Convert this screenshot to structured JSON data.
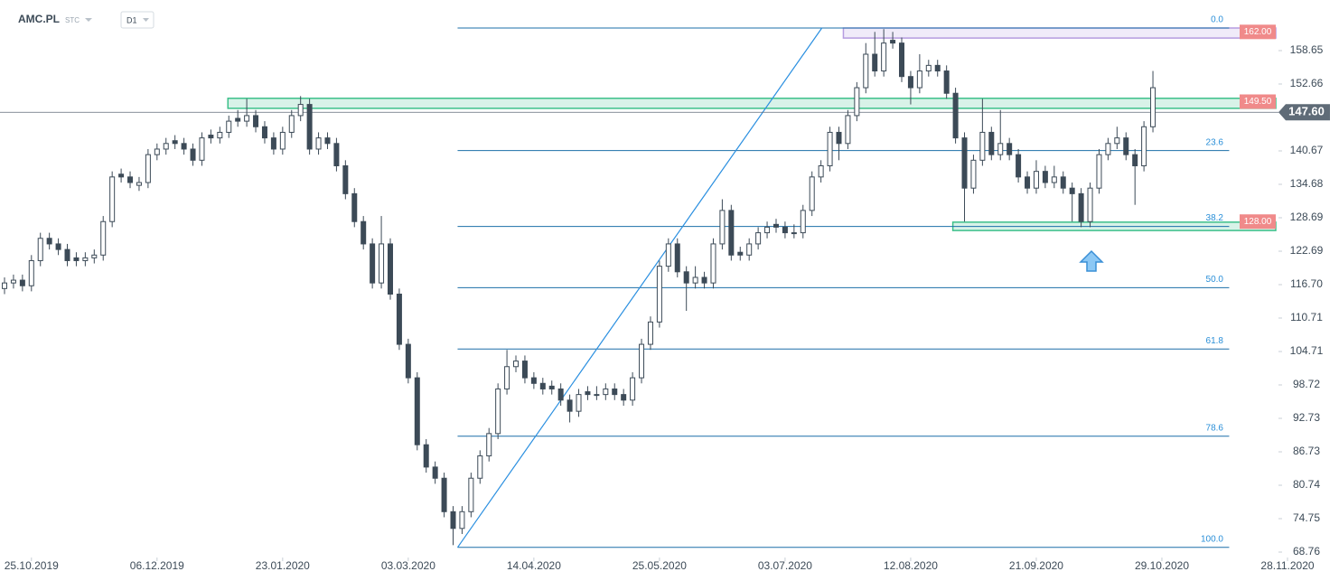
{
  "header": {
    "symbol": "AMC.PL",
    "tag": "STC",
    "interval": "D1"
  },
  "chart_data": {
    "type": "candlestick",
    "color_up": "#ffffff",
    "color_down": "#3c4a57",
    "outline": "#3c4a57",
    "xlim": [
      0,
      143
    ],
    "ylim": [
      68.11,
      167.72
    ],
    "xticks": [
      {
        "value": 3,
        "label": "25.10.2019"
      },
      {
        "value": 17,
        "label": "06.12.2019"
      },
      {
        "value": 31,
        "label": "23.01.2020"
      },
      {
        "value": 45,
        "label": "03.03.2020"
      },
      {
        "value": 59,
        "label": "14.04.2020"
      },
      {
        "value": 73,
        "label": "25.05.2020"
      },
      {
        "value": 87,
        "label": "03.07.2020"
      },
      {
        "value": 101,
        "label": "12.08.2020"
      },
      {
        "value": 115,
        "label": "21.09.2020"
      },
      {
        "value": 129,
        "label": "29.10.2020"
      },
      {
        "value": 143,
        "label": "28.11.2020"
      }
    ],
    "yticks": [
      68.76,
      74.75,
      80.74,
      86.73,
      92.73,
      98.72,
      104.71,
      110.71,
      {
        "value": 116.7,
        "label": "116.70"
      },
      122.69,
      128.69,
      134.68,
      140.67,
      152.66,
      158.65
    ],
    "last_price": {
      "value": 147.6,
      "label": "147.60"
    },
    "zones": [
      {
        "level": {
          "value": 162,
          "label": "162.00"
        },
        "range": [
          160.9,
          162.7
        ],
        "start": 93.5,
        "color": "#b59ce0"
      },
      {
        "level": {
          "value": 149.5,
          "label": "149.50"
        },
        "range": [
          148.3,
          150.1
        ],
        "start": 24.9,
        "color": "#3cc08a"
      },
      {
        "level": {
          "value": 128,
          "label": "128.00"
        },
        "range": [
          126.4,
          127.9
        ],
        "start": 105.7,
        "color": "#3cc08a"
      }
    ],
    "fibonacci": {
      "high": 162.7,
      "low": 69.6,
      "start": 50.5,
      "end": 136.5,
      "levels": [
        {
          "value": 0,
          "label": "0.0"
        },
        {
          "value": 23.6,
          "label": "23.6"
        },
        {
          "value": 38.2,
          "label": "38.2"
        },
        {
          "value": 50,
          "label": "50.0"
        },
        {
          "value": 61.8,
          "label": "61.8"
        },
        {
          "value": 78.6,
          "label": "78.6"
        },
        {
          "value": 100,
          "label": "100.0"
        }
      ]
    },
    "trendline": {
      "x": [
        50.5,
        91.1
      ],
      "y": [
        69.6,
        162.7
      ]
    },
    "candles": [
      [
        116,
        118,
        115,
        117
      ],
      [
        117,
        118.5,
        116,
        117.5
      ],
      [
        117.5,
        118.5,
        115.5,
        116.5
      ],
      [
        116.5,
        122,
        115.5,
        121
      ],
      [
        121,
        126,
        120,
        125
      ],
      [
        125,
        126,
        123,
        124
      ],
      [
        124,
        125,
        122,
        123
      ],
      [
        123,
        124,
        120,
        121
      ],
      [
        121.5,
        122.5,
        120,
        121
      ],
      [
        121,
        122.5,
        120,
        121.5
      ],
      [
        121.5,
        123,
        120.5,
        122
      ],
      [
        122,
        129,
        121,
        128
      ],
      [
        128,
        137,
        127,
        136
      ],
      [
        136.5,
        137.5,
        135,
        136
      ],
      [
        136,
        137,
        134,
        135
      ],
      [
        134.5,
        136,
        133.5,
        135
      ],
      [
        135,
        141,
        134,
        140
      ],
      [
        140,
        142,
        139,
        141
      ],
      [
        141,
        143,
        140,
        142
      ],
      [
        142.5,
        143.5,
        141,
        142
      ],
      [
        142,
        143,
        140,
        141
      ],
      [
        141,
        142,
        138,
        139
      ],
      [
        139,
        144,
        138,
        143
      ],
      [
        143.5,
        144.5,
        142,
        143
      ],
      [
        143,
        145,
        142,
        144
      ],
      [
        144,
        147,
        143,
        146
      ],
      [
        146.5,
        148,
        145,
        146
      ],
      [
        146,
        150,
        145,
        147
      ],
      [
        147,
        148,
        144,
        145
      ],
      [
        145,
        146,
        142,
        143
      ],
      [
        143,
        144,
        140,
        141
      ],
      [
        141,
        145,
        140,
        144
      ],
      [
        144,
        148,
        143,
        147
      ],
      [
        147,
        150.5,
        146,
        149
      ],
      [
        149,
        150,
        140,
        141
      ],
      [
        141,
        144,
        140,
        143
      ],
      [
        143,
        144,
        141,
        142
      ],
      [
        142,
        143,
        137,
        138
      ],
      [
        138,
        139,
        132,
        133
      ],
      [
        133,
        134,
        127,
        128
      ],
      [
        128,
        129,
        123,
        124
      ],
      [
        124,
        125,
        116,
        117
      ],
      [
        117,
        129,
        116,
        124
      ],
      [
        124,
        125,
        114,
        115
      ],
      [
        115,
        116,
        105,
        106
      ],
      [
        106,
        107,
        99,
        100
      ],
      [
        100,
        101,
        87,
        88
      ],
      [
        88,
        89,
        83,
        84
      ],
      [
        84,
        85,
        81,
        82
      ],
      [
        82,
        83,
        75,
        76
      ],
      [
        76,
        77,
        70,
        73
      ],
      [
        73,
        77,
        72,
        76
      ],
      [
        76,
        83,
        75,
        82
      ],
      [
        82,
        87,
        81,
        86
      ],
      [
        86,
        91,
        85,
        90
      ],
      [
        90,
        99,
        89,
        98
      ],
      [
        98,
        105,
        97,
        102
      ],
      [
        102,
        104,
        101,
        103
      ],
      [
        103,
        104,
        99,
        100
      ],
      [
        100,
        101,
        98,
        99
      ],
      [
        99,
        100,
        97,
        98
      ],
      [
        98.5,
        99.5,
        97,
        98
      ],
      [
        98,
        99,
        95,
        96
      ],
      [
        96,
        97,
        92,
        94
      ],
      [
        94,
        98,
        93,
        97
      ],
      [
        97.5,
        98.5,
        96,
        97
      ],
      [
        97,
        98.5,
        96,
        97
      ],
      [
        97,
        99,
        96,
        98
      ],
      [
        98,
        99,
        96,
        97
      ],
      [
        97,
        98,
        95,
        96
      ],
      [
        96,
        101,
        95,
        100
      ],
      [
        100,
        107,
        99,
        106
      ],
      [
        106,
        111,
        105,
        110
      ],
      [
        110,
        121,
        109,
        120
      ],
      [
        120,
        125,
        119,
        124
      ],
      [
        124,
        125,
        118,
        119
      ],
      [
        119,
        120,
        112,
        117
      ],
      [
        117,
        120,
        116,
        118
      ],
      [
        118,
        119,
        116,
        117
      ],
      [
        117,
        125,
        116,
        124
      ],
      [
        124,
        132,
        123,
        130
      ],
      [
        130,
        131,
        121,
        122
      ],
      [
        122.5,
        123.5,
        121,
        122
      ],
      [
        122,
        125,
        121,
        124
      ],
      [
        124,
        127,
        123,
        126
      ],
      [
        126,
        128,
        125,
        127
      ],
      [
        127.5,
        128.5,
        126,
        127
      ],
      [
        127,
        128,
        125,
        126
      ],
      [
        126,
        127.5,
        125,
        126
      ],
      [
        126,
        131,
        125,
        130
      ],
      [
        130,
        137,
        129,
        136
      ],
      [
        136,
        139,
        135,
        138
      ],
      [
        138,
        145,
        137,
        144
      ],
      [
        144,
        145,
        139,
        142
      ],
      [
        142,
        148,
        141,
        147
      ],
      [
        147,
        153,
        146,
        152
      ],
      [
        152,
        160,
        151,
        158
      ],
      [
        158,
        162,
        154,
        155
      ],
      [
        155,
        162.5,
        154,
        160
      ],
      [
        160.5,
        162,
        159,
        160
      ],
      [
        160,
        161,
        153,
        154
      ],
      [
        154,
        155,
        149,
        152
      ],
      [
        152,
        158,
        151,
        155
      ],
      [
        155,
        157,
        154,
        156
      ],
      [
        156,
        157,
        154,
        155
      ],
      [
        155,
        156,
        150,
        151
      ],
      [
        151,
        152,
        142,
        143
      ],
      [
        143,
        144,
        128,
        134
      ],
      [
        134,
        140,
        133,
        139
      ],
      [
        139,
        150,
        138,
        144
      ],
      [
        144,
        145,
        139,
        140
      ],
      [
        140,
        148,
        139,
        142
      ],
      [
        142,
        143,
        139,
        140
      ],
      [
        140,
        141,
        135,
        136
      ],
      [
        136,
        137,
        133,
        134
      ],
      [
        134,
        139,
        133,
        137
      ],
      [
        137,
        138,
        134,
        135
      ],
      [
        135,
        138,
        134,
        136
      ],
      [
        136,
        137,
        133,
        134
      ],
      [
        134,
        135,
        128,
        133
      ],
      [
        133,
        134,
        127,
        128
      ],
      [
        128,
        135,
        127,
        134
      ],
      [
        134,
        141,
        133,
        140
      ],
      [
        140,
        143,
        139,
        142
      ],
      [
        142,
        145,
        141,
        143
      ],
      [
        143,
        144,
        139,
        140
      ],
      [
        140,
        141,
        131,
        138
      ],
      [
        138,
        146,
        137,
        145
      ],
      [
        145,
        155,
        144,
        152
      ]
    ]
  }
}
